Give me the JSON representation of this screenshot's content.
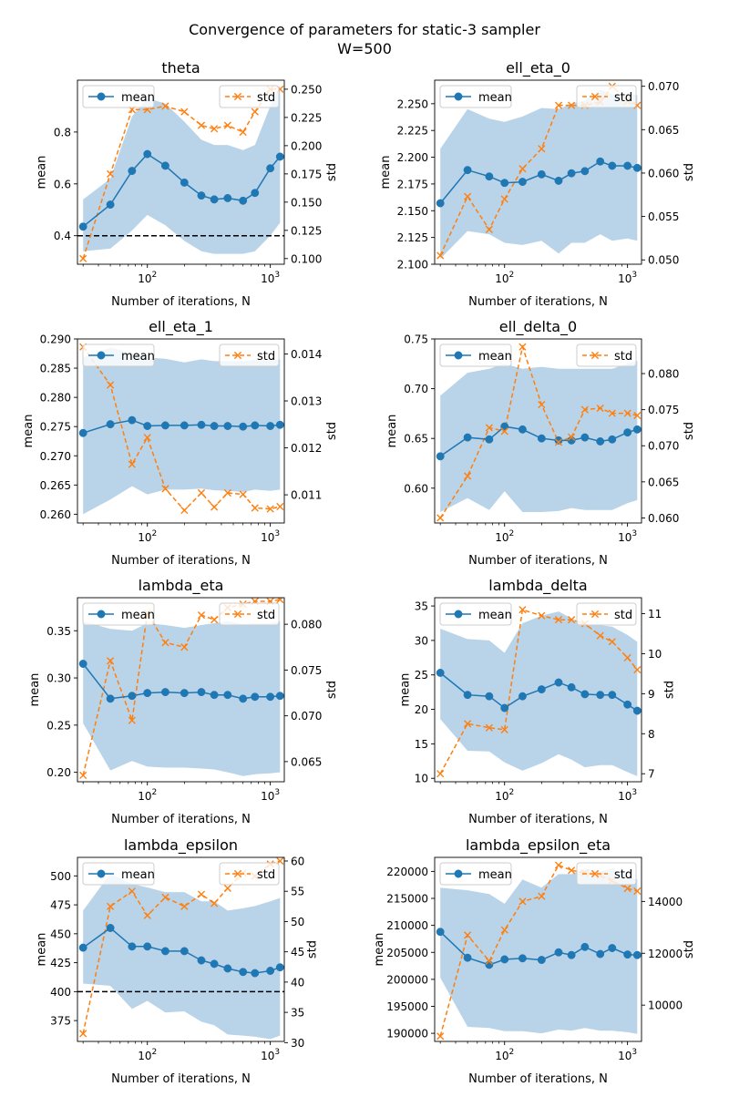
{
  "figure": {
    "title_line1": "Convergence of parameters for static-3 sampler",
    "title_line2": "W=500"
  },
  "colors": {
    "mean": "#1f77b4",
    "std": "#ff7f0e",
    "band": "#a8c9e4",
    "reference": "#000000"
  },
  "chart_data": [
    {
      "type": "line",
      "title": "theta",
      "xlabel": "Number of iterations, N",
      "ylabel_left": "mean",
      "ylabel_right": "std",
      "xscale": "log",
      "xlim": [
        27,
        1300
      ],
      "x_ticks": [
        100,
        1000
      ],
      "x_tick_labels": [
        "10²",
        "10³"
      ],
      "x": [
        30,
        50,
        75,
        100,
        140,
        200,
        275,
        350,
        450,
        600,
        750,
        1000,
        1200
      ],
      "ylim_left": [
        0.29,
        1.0
      ],
      "y_ticks_left": [
        0.4,
        0.6,
        0.8
      ],
      "y_tick_labels_left": [
        "0.4",
        "0.6",
        "0.8"
      ],
      "ylim_right": [
        0.095,
        0.258
      ],
      "y_ticks_right": [
        0.1,
        0.125,
        0.15,
        0.175,
        0.2,
        0.225,
        0.25
      ],
      "y_tick_labels_right": [
        "0.100",
        "0.125",
        "0.150",
        "0.175",
        "0.200",
        "0.225",
        "0.250"
      ],
      "mean": [
        0.435,
        0.52,
        0.65,
        0.715,
        0.67,
        0.605,
        0.555,
        0.54,
        0.545,
        0.535,
        0.565,
        0.66,
        0.705
      ],
      "band_upper": [
        0.54,
        0.62,
        0.86,
        0.93,
        0.91,
        0.84,
        0.77,
        0.75,
        0.75,
        0.73,
        0.75,
        0.9,
        0.98
      ],
      "band_lower": [
        0.34,
        0.35,
        0.42,
        0.48,
        0.44,
        0.38,
        0.34,
        0.33,
        0.33,
        0.33,
        0.34,
        0.4,
        0.45
      ],
      "std": [
        0.1,
        0.175,
        0.232,
        0.232,
        0.235,
        0.23,
        0.218,
        0.215,
        0.218,
        0.212,
        0.23,
        0.25,
        0.25
      ],
      "reference_line": 0.4,
      "legend_left": "mean",
      "legend_right": "std",
      "legend_placement": "top-left (mean), top-right (std)"
    },
    {
      "type": "line",
      "title": "ell_eta_0",
      "xlabel": "Number of iterations, N",
      "ylabel_left": "mean",
      "ylabel_right": "std",
      "xscale": "log",
      "xlim": [
        27,
        1300
      ],
      "x_ticks": [
        100,
        1000
      ],
      "x_tick_labels": [
        "10²",
        "10³"
      ],
      "x": [
        30,
        50,
        75,
        100,
        140,
        200,
        275,
        350,
        450,
        600,
        750,
        1000,
        1200
      ],
      "ylim_left": [
        2.1,
        2.272
      ],
      "y_ticks_left": [
        2.1,
        2.125,
        2.15,
        2.175,
        2.2,
        2.225,
        2.25
      ],
      "y_tick_labels_left": [
        "2.100",
        "2.125",
        "2.150",
        "2.175",
        "2.200",
        "2.225",
        "2.250"
      ],
      "ylim_right": [
        0.0495,
        0.0707
      ],
      "y_ticks_right": [
        0.05,
        0.055,
        0.06,
        0.065,
        0.07
      ],
      "y_tick_labels_right": [
        "0.050",
        "0.055",
        "0.060",
        "0.065",
        "0.070"
      ],
      "mean": [
        2.157,
        2.188,
        2.182,
        2.176,
        2.177,
        2.184,
        2.178,
        2.185,
        2.187,
        2.196,
        2.192,
        2.192,
        2.19
      ],
      "band_upper": [
        2.208,
        2.245,
        2.236,
        2.233,
        2.238,
        2.246,
        2.245,
        2.25,
        2.253,
        2.263,
        2.259,
        2.259,
        2.258
      ],
      "band_lower": [
        2.105,
        2.131,
        2.128,
        2.12,
        2.118,
        2.122,
        2.11,
        2.12,
        2.12,
        2.128,
        2.122,
        2.124,
        2.122
      ],
      "std": [
        0.0505,
        0.0573,
        0.0535,
        0.057,
        0.0605,
        0.0628,
        0.0678,
        0.0678,
        0.0678,
        0.0682,
        0.07,
        0.0683,
        0.0678
      ],
      "legend_left": "mean",
      "legend_right": "std",
      "legend_placement": "top-left (mean), top-right (std)"
    },
    {
      "type": "line",
      "title": "ell_eta_1",
      "xlabel": "Number of iterations, N",
      "ylabel_left": "mean",
      "ylabel_right": "std",
      "xscale": "log",
      "xlim": [
        27,
        1300
      ],
      "x_ticks": [
        100,
        1000
      ],
      "x_tick_labels": [
        "10²",
        "10³"
      ],
      "x": [
        30,
        50,
        75,
        100,
        140,
        200,
        275,
        350,
        450,
        600,
        750,
        1000,
        1200
      ],
      "ylim_left": [
        0.2585,
        0.29
      ],
      "y_ticks_left": [
        0.26,
        0.265,
        0.27,
        0.275,
        0.28,
        0.285,
        0.29
      ],
      "y_tick_labels_left": [
        "0.260",
        "0.265",
        "0.270",
        "0.275",
        "0.280",
        "0.285",
        "0.290"
      ],
      "ylim_right": [
        0.0104,
        0.01432
      ],
      "y_ticks_right": [
        0.011,
        0.012,
        0.013,
        0.014
      ],
      "y_tick_labels_right": [
        "0.011",
        "0.012",
        "0.013",
        "0.014"
      ],
      "mean": [
        0.2739,
        0.2754,
        0.2761,
        0.2751,
        0.2752,
        0.2752,
        0.2753,
        0.2751,
        0.2751,
        0.275,
        0.2752,
        0.2751,
        0.2753
      ],
      "band_upper": [
        0.2868,
        0.2885,
        0.2876,
        0.2868,
        0.2866,
        0.286,
        0.2865,
        0.2862,
        0.2862,
        0.2862,
        0.2864,
        0.2863,
        0.2865
      ],
      "band_lower": [
        0.26,
        0.2625,
        0.2648,
        0.2634,
        0.2642,
        0.2642,
        0.2644,
        0.2641,
        0.264,
        0.2638,
        0.2642,
        0.264,
        0.2642
      ],
      "std": [
        0.01415,
        0.01334,
        0.01165,
        0.01222,
        0.01113,
        0.01067,
        0.01104,
        0.01074,
        0.01104,
        0.01101,
        0.01072,
        0.0107,
        0.01075
      ],
      "legend_left": "mean",
      "legend_right": "std",
      "legend_placement": "top-left (mean), top-right (std)"
    },
    {
      "type": "line",
      "title": "ell_delta_0",
      "xlabel": "Number of iterations, N",
      "ylabel_left": "mean",
      "ylabel_right": "std",
      "xscale": "log",
      "xlim": [
        27,
        1300
      ],
      "x_ticks": [
        100,
        1000
      ],
      "x_tick_labels": [
        "10²",
        "10³"
      ],
      "x": [
        30,
        50,
        75,
        100,
        140,
        200,
        275,
        350,
        450,
        600,
        750,
        1000,
        1200
      ],
      "ylim_left": [
        0.565,
        0.75
      ],
      "y_ticks_left": [
        0.6,
        0.65,
        0.7,
        0.75
      ],
      "y_tick_labels_left": [
        "0.60",
        "0.65",
        "0.70",
        "0.75"
      ],
      "ylim_right": [
        0.0593,
        0.0848
      ],
      "y_ticks_right": [
        0.06,
        0.065,
        0.07,
        0.075,
        0.08
      ],
      "y_tick_labels_right": [
        "0.060",
        "0.065",
        "0.070",
        "0.075",
        "0.080"
      ],
      "mean": [
        0.632,
        0.651,
        0.649,
        0.662,
        0.659,
        0.65,
        0.648,
        0.648,
        0.651,
        0.647,
        0.649,
        0.656,
        0.659
      ],
      "band_upper": [
        0.693,
        0.716,
        0.72,
        0.725,
        0.72,
        0.722,
        0.72,
        0.72,
        0.72,
        0.72,
        0.72,
        0.725,
        0.728
      ],
      "band_lower": [
        0.576,
        0.59,
        0.578,
        0.597,
        0.576,
        0.576,
        0.577,
        0.58,
        0.578,
        0.578,
        0.578,
        0.585,
        0.588
      ],
      "std": [
        0.06,
        0.0658,
        0.0725,
        0.072,
        0.0837,
        0.0757,
        0.0705,
        0.0712,
        0.075,
        0.0752,
        0.0745,
        0.0745,
        0.0742
      ],
      "legend_left": "mean",
      "legend_right": "std",
      "legend_placement": "top-left (mean), top-right (std)"
    },
    {
      "type": "line",
      "title": "lambda_eta",
      "xlabel": "Number of iterations, N",
      "ylabel_left": "mean",
      "ylabel_right": "std",
      "xscale": "log",
      "xlim": [
        27,
        1300
      ],
      "x_ticks": [
        100,
        1000
      ],
      "x_tick_labels": [
        "10²",
        "10³"
      ],
      "x": [
        30,
        50,
        75,
        100,
        140,
        200,
        275,
        350,
        450,
        600,
        750,
        1000,
        1200
      ],
      "ylim_left": [
        0.19,
        0.385
      ],
      "y_ticks_left": [
        0.2,
        0.25,
        0.3,
        0.35
      ],
      "y_tick_labels_left": [
        "0.20",
        "0.25",
        "0.30",
        "0.35"
      ],
      "ylim_right": [
        0.0628,
        0.0829
      ],
      "y_ticks_right": [
        0.065,
        0.07,
        0.075,
        0.08
      ],
      "y_tick_labels_right": [
        "0.065",
        "0.070",
        "0.075",
        "0.080"
      ],
      "mean": [
        0.315,
        0.278,
        0.281,
        0.284,
        0.285,
        0.284,
        0.285,
        0.282,
        0.282,
        0.278,
        0.28,
        0.28,
        0.281
      ],
      "band_upper": [
        0.36,
        0.352,
        0.35,
        0.358,
        0.356,
        0.353,
        0.356,
        0.358,
        0.36,
        0.357,
        0.358,
        0.358,
        0.36
      ],
      "band_lower": [
        0.252,
        0.202,
        0.212,
        0.206,
        0.205,
        0.205,
        0.204,
        0.203,
        0.2,
        0.196,
        0.198,
        0.199,
        0.2
      ],
      "std": [
        0.0635,
        0.076,
        0.0695,
        0.0812,
        0.078,
        0.0775,
        0.081,
        0.0805,
        0.0818,
        0.0822,
        0.0825,
        0.0825,
        0.0827
      ],
      "legend_left": "mean",
      "legend_right": "std",
      "legend_placement": "top-left (mean), top-right (std)"
    },
    {
      "type": "line",
      "title": "lambda_delta",
      "xlabel": "Number of iterations, N",
      "ylabel_left": "mean",
      "ylabel_right": "std",
      "xscale": "log",
      "xlim": [
        27,
        1300
      ],
      "x_ticks": [
        100,
        1000
      ],
      "x_tick_labels": [
        "10²",
        "10³"
      ],
      "x": [
        30,
        50,
        75,
        100,
        140,
        200,
        275,
        350,
        450,
        600,
        750,
        1000,
        1200
      ],
      "ylim_left": [
        9.5,
        36.2
      ],
      "y_ticks_left": [
        10,
        15,
        20,
        25,
        30,
        35
      ],
      "y_tick_labels_left": [
        "10",
        "15",
        "20",
        "25",
        "30",
        "35"
      ],
      "ylim_right": [
        6.8,
        11.4
      ],
      "y_ticks_right": [
        7,
        8,
        9,
        10,
        11
      ],
      "y_tick_labels_right": [
        "7",
        "8",
        "9",
        "10",
        "11"
      ],
      "mean": [
        25.3,
        22.1,
        21.9,
        20.2,
        21.9,
        22.9,
        23.9,
        23.2,
        22.2,
        22.1,
        22.1,
        20.7,
        19.8
      ],
      "band_upper": [
        31.7,
        30.2,
        30.0,
        28.2,
        32.5,
        33.6,
        34.2,
        33.2,
        32.4,
        32.2,
        32.0,
        30.8,
        29.8
      ],
      "band_lower": [
        18.6,
        14.0,
        13.9,
        12.3,
        11.1,
        12.2,
        13.5,
        12.7,
        11.6,
        11.9,
        11.9,
        10.9,
        10.3
      ],
      "std": [
        7.0,
        8.25,
        8.15,
        8.1,
        11.1,
        10.95,
        10.85,
        10.85,
        10.75,
        10.45,
        10.3,
        9.9,
        9.6
      ],
      "legend_left": "mean",
      "legend_right": "std",
      "legend_placement": "top-left (mean), top-right (std)"
    },
    {
      "type": "line",
      "title": "lambda_epsilon",
      "xlabel": "Number of iterations, N",
      "ylabel_left": "mean",
      "ylabel_right": "std",
      "xscale": "log",
      "xlim": [
        27,
        1300
      ],
      "x_ticks": [
        100,
        1000
      ],
      "x_tick_labels": [
        "10²",
        "10³"
      ],
      "x": [
        30,
        50,
        75,
        100,
        140,
        200,
        275,
        350,
        450,
        600,
        750,
        1000,
        1200
      ],
      "ylim_left": [
        357,
        516
      ],
      "y_ticks_left": [
        375,
        400,
        425,
        450,
        475,
        500
      ],
      "y_tick_labels_left": [
        "375",
        "400",
        "425",
        "450",
        "475",
        "500"
      ],
      "ylim_right": [
        30.2,
        60.6
      ],
      "y_ticks_right": [
        30,
        35,
        40,
        45,
        50,
        55,
        60
      ],
      "y_tick_labels_right": [
        "30",
        "35",
        "40",
        "45",
        "50",
        "55",
        "60"
      ],
      "mean": [
        438,
        455,
        439,
        439,
        435,
        435,
        427,
        424,
        420,
        417,
        416,
        418,
        421
      ],
      "band_upper": [
        470,
        502,
        493,
        490,
        486,
        486,
        478,
        478,
        470,
        472,
        474,
        478,
        481
      ],
      "band_lower": [
        407,
        405,
        385,
        392,
        382,
        383,
        374,
        371,
        363,
        362,
        361,
        359,
        362
      ],
      "std": [
        31.5,
        52.5,
        55.0,
        51.0,
        54.0,
        52.5,
        54.5,
        53.0,
        55.5,
        58.0,
        57.5,
        59.5,
        60.0
      ],
      "reference_line": 400,
      "legend_left": "mean",
      "legend_right": "std",
      "legend_placement": "top-left (mean), top-right (std)"
    },
    {
      "type": "line",
      "title": "lambda_epsilon_eta",
      "xlabel": "Number of iterations, N",
      "ylabel_left": "mean",
      "ylabel_right": "std",
      "xscale": "log",
      "xlim": [
        27,
        1300
      ],
      "x_ticks": [
        100,
        1000
      ],
      "x_tick_labels": [
        "10²",
        "10³"
      ],
      "x": [
        30,
        50,
        75,
        100,
        140,
        200,
        275,
        350,
        450,
        600,
        750,
        1000,
        1200
      ],
      "ylim_left": [
        188500,
        222600
      ],
      "y_ticks_left": [
        190000,
        195000,
        200000,
        205000,
        210000,
        215000,
        220000
      ],
      "y_tick_labels_left": [
        "190000",
        "195000",
        "200000",
        "205000",
        "210000",
        "215000",
        "220000"
      ],
      "ylim_right": [
        8600,
        15700
      ],
      "y_ticks_right": [
        10000,
        12000,
        14000
      ],
      "y_tick_labels_right": [
        "10000",
        "12000",
        "14000"
      ],
      "mean": [
        208800,
        204000,
        202700,
        203700,
        203900,
        203600,
        205000,
        204500,
        206000,
        204700,
        205800,
        204600,
        204500
      ],
      "band_upper": [
        217000,
        216500,
        215800,
        214000,
        218500,
        217000,
        219500,
        219500,
        220500,
        220000,
        220500,
        219000,
        218500
      ],
      "band_lower": [
        200300,
        191200,
        191000,
        190400,
        190400,
        190000,
        190700,
        190500,
        191000,
        190500,
        190500,
        190200,
        189900
      ],
      "std": [
        8800,
        12700,
        11700,
        12900,
        14000,
        14200,
        15400,
        15200,
        15100,
        15000,
        14800,
        14500,
        14400
      ],
      "legend_left": "mean",
      "legend_right": "std",
      "legend_placement": "top-left (mean), top-right (std)"
    }
  ]
}
